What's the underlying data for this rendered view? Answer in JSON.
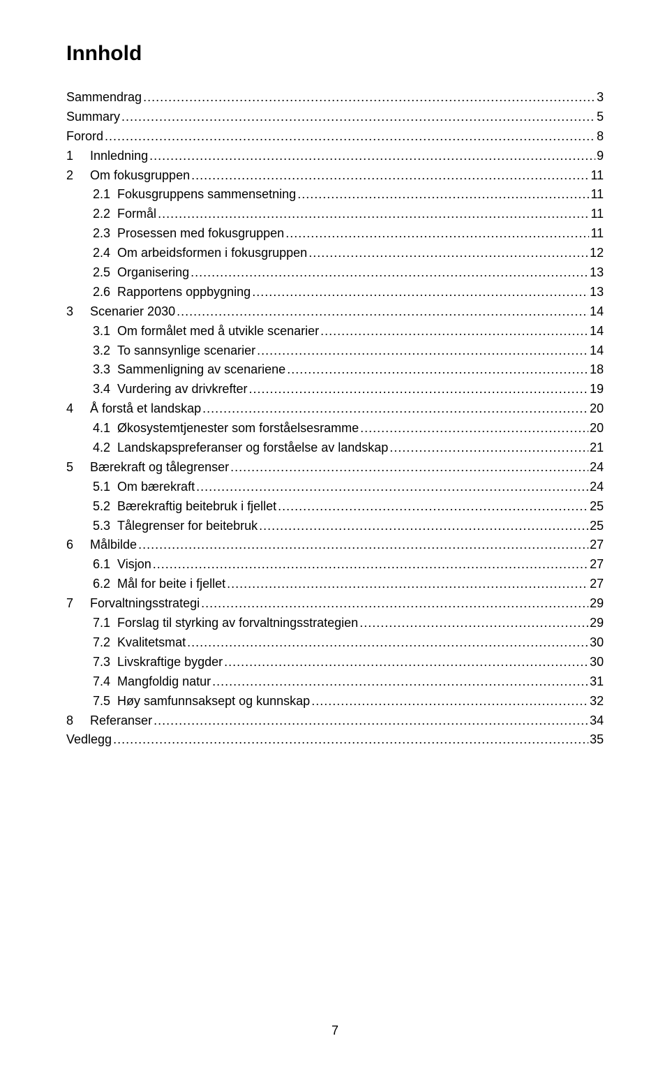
{
  "title": "Innhold",
  "page_number": "7",
  "entries": [
    {
      "indent": 0,
      "num": "",
      "text": "Sammendrag",
      "page": "3"
    },
    {
      "indent": 0,
      "num": "",
      "text": "Summary",
      "page": "5"
    },
    {
      "indent": 0,
      "num": "",
      "text": "Forord",
      "page": "8"
    },
    {
      "indent": 0,
      "num": "1",
      "text": "Innledning",
      "page": "9"
    },
    {
      "indent": 0,
      "num": "2",
      "text": "Om fokusgruppen",
      "page": "11"
    },
    {
      "indent": 1,
      "num": "2.1",
      "text": "Fokusgruppens sammensetning",
      "page": "11"
    },
    {
      "indent": 1,
      "num": "2.2",
      "text": "Formål",
      "page": "11"
    },
    {
      "indent": 1,
      "num": "2.3",
      "text": "Prosessen med fokusgruppen",
      "page": "11"
    },
    {
      "indent": 1,
      "num": "2.4",
      "text": "Om arbeidsformen i fokusgruppen",
      "page": "12"
    },
    {
      "indent": 1,
      "num": "2.5",
      "text": "Organisering",
      "page": "13"
    },
    {
      "indent": 1,
      "num": "2.6",
      "text": "Rapportens oppbygning",
      "page": "13"
    },
    {
      "indent": 0,
      "num": "3",
      "text": "Scenarier 2030",
      "page": "14"
    },
    {
      "indent": 1,
      "num": "3.1",
      "text": "Om formålet med å utvikle scenarier",
      "page": "14"
    },
    {
      "indent": 1,
      "num": "3.2",
      "text": "To sannsynlige scenarier",
      "page": "14"
    },
    {
      "indent": 1,
      "num": "3.3",
      "text": "Sammenligning av scenariene",
      "page": "18"
    },
    {
      "indent": 1,
      "num": "3.4",
      "text": "Vurdering av drivkrefter",
      "page": "19"
    },
    {
      "indent": 0,
      "num": "4",
      "text": "Å forstå et landskap",
      "page": "20"
    },
    {
      "indent": 1,
      "num": "4.1",
      "text": "Økosystemtjenester som forståelsesramme",
      "page": "20"
    },
    {
      "indent": 1,
      "num": "4.2",
      "text": "Landskapspreferanser og forståelse av landskap",
      "page": "21"
    },
    {
      "indent": 0,
      "num": "5",
      "text": "Bærekraft og tålegrenser",
      "page": "24"
    },
    {
      "indent": 1,
      "num": "5.1",
      "text": "Om bærekraft",
      "page": "24"
    },
    {
      "indent": 1,
      "num": "5.2",
      "text": "Bærekraftig beitebruk i fjellet",
      "page": "25"
    },
    {
      "indent": 1,
      "num": "5.3",
      "text": "Tålegrenser for beitebruk",
      "page": "25"
    },
    {
      "indent": 0,
      "num": "6",
      "text": "Målbilde",
      "page": "27"
    },
    {
      "indent": 1,
      "num": "6.1",
      "text": "Visjon",
      "page": "27"
    },
    {
      "indent": 1,
      "num": "6.2",
      "text": "Mål for beite i fjellet",
      "page": "27"
    },
    {
      "indent": 0,
      "num": "7",
      "text": "Forvaltningsstrategi",
      "page": "29"
    },
    {
      "indent": 1,
      "num": "7.1",
      "text": "Forslag til styrking av forvaltningsstrategien",
      "page": "29"
    },
    {
      "indent": 1,
      "num": "7.2",
      "text": "Kvalitetsmat",
      "page": "30"
    },
    {
      "indent": 1,
      "num": "7.3",
      "text": "Livskraftige bygder",
      "page": "30"
    },
    {
      "indent": 1,
      "num": "7.4",
      "text": "Mangfoldig natur",
      "page": "31"
    },
    {
      "indent": 1,
      "num": "7.5",
      "text": "Høy samfunnsaksept og kunnskap",
      "page": "32"
    },
    {
      "indent": 0,
      "num": "8",
      "text": "Referanser",
      "page": "34"
    },
    {
      "indent": 0,
      "num": "",
      "text": "Vedlegg",
      "page": "35"
    }
  ]
}
